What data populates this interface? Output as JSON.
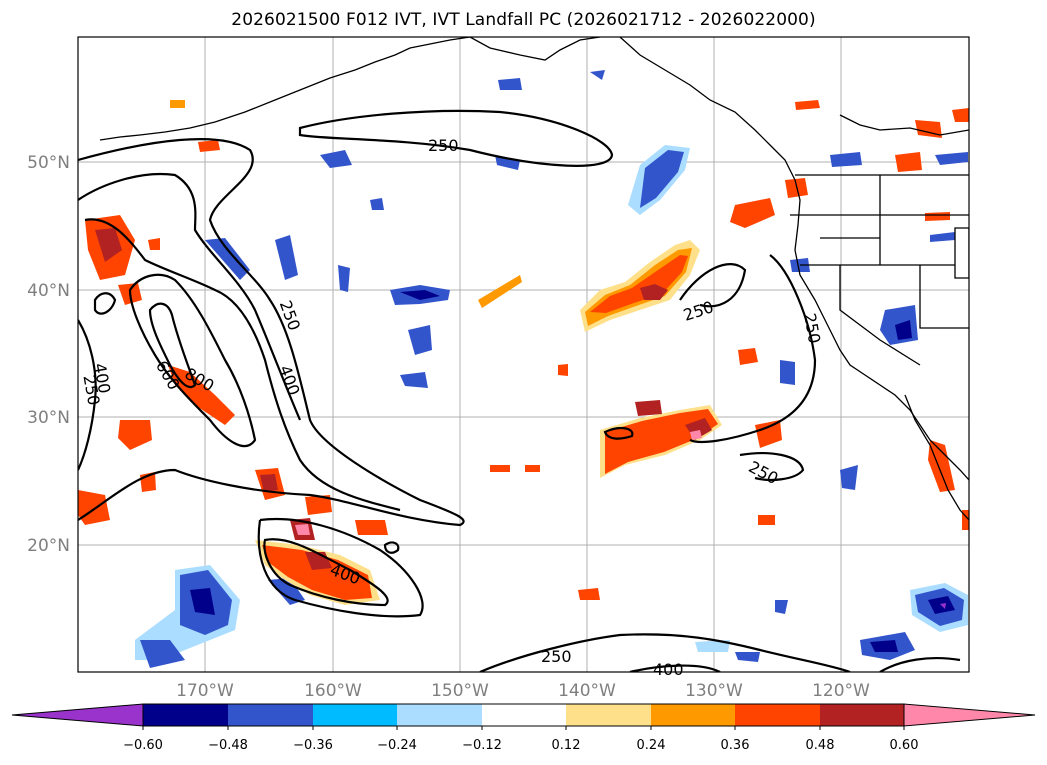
{
  "title": "2026021500 F012 IVT, IVT Landfall PC (2026021712 - 2026022000)",
  "latitude_labels": [
    "50°N",
    "40°N",
    "30°N",
    "20°N"
  ],
  "longitude_labels": [
    "170°W",
    "160°W",
    "150°W",
    "140°W",
    "130°W",
    "120°W"
  ],
  "contour_labels": [
    "250",
    "250",
    "250",
    "250",
    "250",
    "250",
    "250",
    "400",
    "400",
    "400",
    "600",
    "800",
    "400"
  ],
  "colorbar": {
    "ticks": [
      "−0.60",
      "−0.48",
      "−0.36",
      "−0.24",
      "−0.12",
      "0.12",
      "0.24",
      "0.36",
      "0.48",
      "0.60"
    ],
    "colors": [
      "#9933cc",
      "#00008b",
      "#3355cc",
      "#00bbff",
      "#aaddff",
      "#ffffff",
      "#ffe08a",
      "#ff9900",
      "#ff4400",
      "#b22222",
      "#ff88aa"
    ]
  },
  "map_colors": {
    "land_outline": "#000000",
    "grid": "#b0b0b0",
    "contour": "#000000"
  }
}
